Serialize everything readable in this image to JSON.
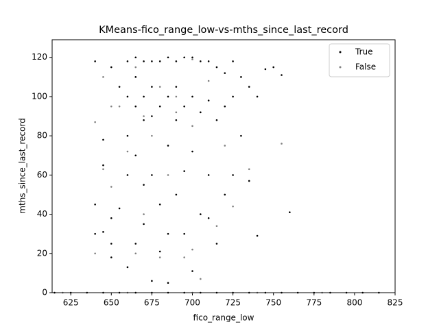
{
  "chart_data": {
    "type": "scatter",
    "title": "KMeans-fico_range_low-vs-mths_since_last_record",
    "x_label": "fico_range_low",
    "y_label": "mths_since_last_record",
    "xlim": [
      613.5,
      825
    ],
    "ylim": [
      0,
      129
    ],
    "xticks": [
      625,
      650,
      675,
      700,
      725,
      750,
      775,
      800,
      825
    ],
    "yticks": [
      0,
      20,
      40,
      60,
      80,
      100,
      120
    ],
    "grid": false,
    "legend": "upper right",
    "series": [
      {
        "name": "True",
        "color": "#000000",
        "x": [
          640,
          640,
          640,
          645,
          645,
          645,
          650,
          650,
          650,
          650,
          655,
          655,
          660,
          660,
          660,
          660,
          660,
          665,
          665,
          665,
          665,
          665,
          670,
          670,
          670,
          670,
          670,
          675,
          675,
          675,
          675,
          675,
          680,
          680,
          680,
          680,
          685,
          685,
          685,
          685,
          685,
          690,
          690,
          690,
          690,
          695,
          695,
          695,
          695,
          700,
          700,
          700,
          700,
          705,
          705,
          705,
          710,
          710,
          710,
          710,
          715,
          715,
          715,
          720,
          720,
          720,
          725,
          725,
          725,
          730,
          730,
          735,
          735,
          740,
          740,
          745,
          750,
          755,
          760,
          615,
          625,
          635,
          645,
          655,
          665,
          675,
          685,
          695,
          705,
          715,
          725,
          735,
          745,
          755,
          765,
          775,
          785,
          795,
          805,
          815
        ],
        "values": [
          118,
          45,
          30,
          78,
          65,
          31,
          115,
          38,
          25,
          18,
          105,
          43,
          118,
          100,
          80,
          60,
          13,
          120,
          110,
          95,
          70,
          25,
          118,
          100,
          88,
          55,
          35,
          118,
          105,
          90,
          60,
          6,
          118,
          95,
          45,
          21,
          120,
          100,
          75,
          30,
          5,
          118,
          105,
          88,
          50,
          120,
          95,
          62,
          30,
          120,
          100,
          72,
          11,
          118,
          92,
          40,
          118,
          98,
          60,
          38,
          115,
          88,
          25,
          112,
          95,
          50,
          118,
          100,
          60,
          110,
          80,
          105,
          57,
          100,
          29,
          114,
          115,
          111,
          41,
          0,
          0,
          0,
          0,
          0,
          0,
          0,
          0,
          0,
          0,
          0,
          0,
          0,
          0,
          0,
          0,
          0,
          0,
          0,
          0,
          0
        ]
      },
      {
        "name": "False",
        "color": "#808080",
        "x": [
          640,
          640,
          645,
          645,
          650,
          650,
          655,
          660,
          665,
          665,
          670,
          670,
          675,
          680,
          680,
          685,
          690,
          695,
          700,
          700,
          705,
          710,
          715,
          720,
          725,
          735,
          755,
          700,
          690,
          620,
          660,
          700,
          740,
          780
        ],
        "values": [
          87,
          20,
          110,
          63,
          95,
          54,
          95,
          72,
          115,
          20,
          90,
          40,
          80,
          105,
          18,
          60,
          100,
          18,
          85,
          22,
          7,
          108,
          34,
          75,
          44,
          63,
          76,
          119,
          92,
          0,
          0,
          0,
          0,
          0
        ]
      }
    ]
  }
}
